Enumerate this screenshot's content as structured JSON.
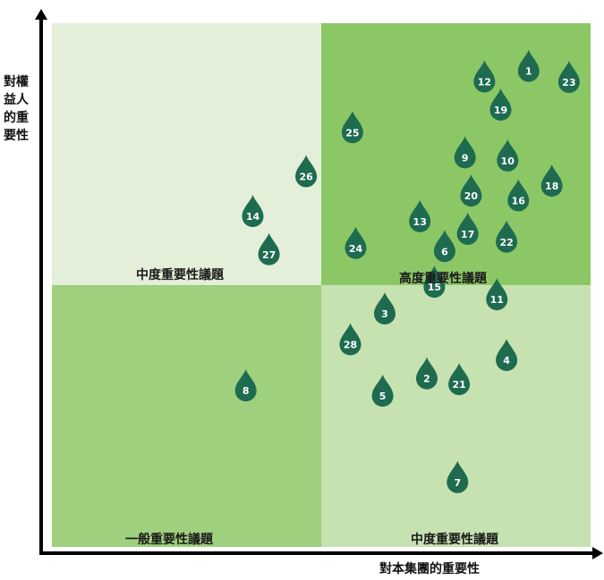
{
  "chart_data": {
    "type": "scatter",
    "title": "",
    "xlabel": "對本集團的重要性",
    "ylabel": "對權益人的重要性",
    "xlim": [
      0,
      100
    ],
    "ylim": [
      0,
      100
    ],
    "grid": false,
    "quadrants": {
      "top_left": "中度重要性議題",
      "top_right": "高度重要性議題",
      "bottom_left": "一般重要性議題",
      "bottom_right": "中度重要性議題"
    },
    "points": [
      {
        "label": "1",
        "x": 88.5,
        "y": 91.0
      },
      {
        "label": "2",
        "x": 69.6,
        "y": 32.3
      },
      {
        "label": "3",
        "x": 61.8,
        "y": 44.7
      },
      {
        "label": "4",
        "x": 84.4,
        "y": 35.8
      },
      {
        "label": "5",
        "x": 61.4,
        "y": 29.0
      },
      {
        "label": "6",
        "x": 72.9,
        "y": 56.6
      },
      {
        "label": "7",
        "x": 75.3,
        "y": 12.5
      },
      {
        "label": "8",
        "x": 36.0,
        "y": 30.0
      },
      {
        "label": "9",
        "x": 76.7,
        "y": 74.5
      },
      {
        "label": "10",
        "x": 84.6,
        "y": 73.9
      },
      {
        "label": "11",
        "x": 82.6,
        "y": 47.4
      },
      {
        "label": "12",
        "x": 80.3,
        "y": 89.0
      },
      {
        "label": "13",
        "x": 68.3,
        "y": 62.3
      },
      {
        "label": "14",
        "x": 37.3,
        "y": 63.3
      },
      {
        "label": "15",
        "x": 71.0,
        "y": 49.8
      },
      {
        "label": "16",
        "x": 86.6,
        "y": 66.3
      },
      {
        "label": "17",
        "x": 77.2,
        "y": 59.9
      },
      {
        "label": "18",
        "x": 92.8,
        "y": 69.1
      },
      {
        "label": "19",
        "x": 83.3,
        "y": 83.6
      },
      {
        "label": "20",
        "x": 77.8,
        "y": 67.2
      },
      {
        "label": "21",
        "x": 75.6,
        "y": 31.2
      },
      {
        "label": "22",
        "x": 84.4,
        "y": 58.4
      },
      {
        "label": "23",
        "x": 96.0,
        "y": 88.9
      },
      {
        "label": "24",
        "x": 56.4,
        "y": 57.2
      },
      {
        "label": "25",
        "x": 55.8,
        "y": 79.3
      },
      {
        "label": "26",
        "x": 47.2,
        "y": 70.9
      },
      {
        "label": "27",
        "x": 40.3,
        "y": 56.0
      },
      {
        "label": "28",
        "x": 55.4,
        "y": 38.8
      }
    ]
  },
  "colors": {
    "q_top_left": "#e4efd9",
    "q_top_right": "#8cc766",
    "q_bottom_left": "#9fd07d",
    "q_bottom_right": "#c7e2b1",
    "drop": "#1e6b50",
    "axis": "#000000"
  }
}
